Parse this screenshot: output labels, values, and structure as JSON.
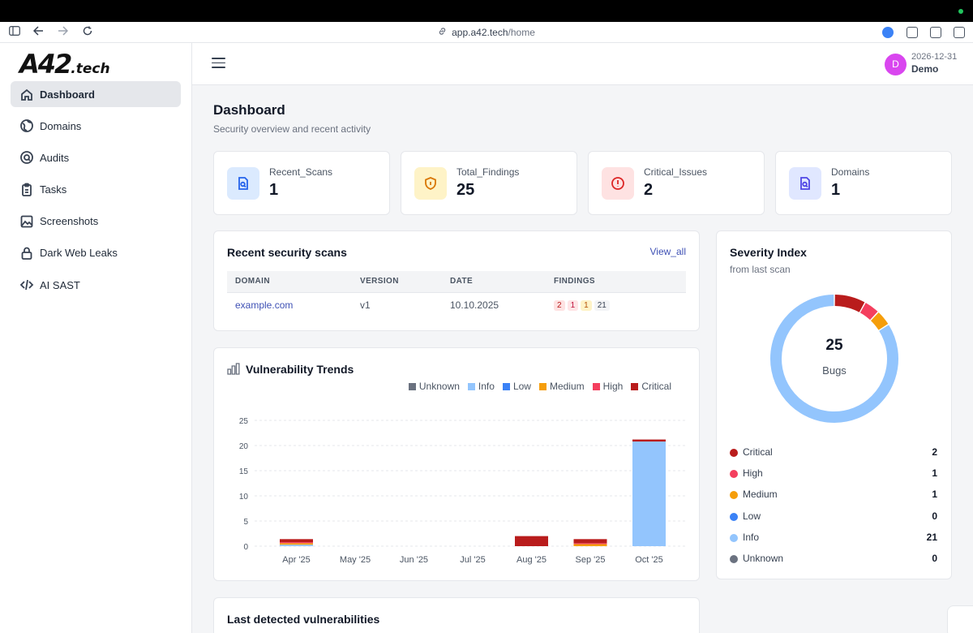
{
  "browser": {
    "url_host": "app.a42.tech",
    "url_path": "/home"
  },
  "logo": {
    "main": "A42",
    "suffix": ".tech"
  },
  "sidebar": {
    "items": [
      {
        "label": "Dashboard",
        "icon": "home-icon",
        "active": true
      },
      {
        "label": "Domains",
        "icon": "globe-icon"
      },
      {
        "label": "Audits",
        "icon": "search-circle-icon"
      },
      {
        "label": "Tasks",
        "icon": "clipboard-icon"
      },
      {
        "label": "Screenshots",
        "icon": "image-icon"
      },
      {
        "label": "Dark Web Leaks",
        "icon": "lock-icon"
      },
      {
        "label": "AI SAST",
        "icon": "code-icon"
      }
    ]
  },
  "header": {
    "avatar_initial": "D",
    "date": "2026-12-31",
    "user": "Demo"
  },
  "page": {
    "title": "Dashboard",
    "subtitle": "Security overview and recent activity"
  },
  "stats": [
    {
      "label": "Recent_Scans",
      "value": "1",
      "icon": "scan-doc-icon",
      "bg": "#dbeafe",
      "color": "#2563eb"
    },
    {
      "label": "Total_Findings",
      "value": "25",
      "icon": "shield-icon",
      "bg": "#fef3c7",
      "color": "#d97706"
    },
    {
      "label": "Critical_Issues",
      "value": "2",
      "icon": "alert-circle-icon",
      "bg": "#fee2e2",
      "color": "#dc2626"
    },
    {
      "label": "Domains",
      "value": "1",
      "icon": "domain-doc-icon",
      "bg": "#e0e7ff",
      "color": "#4f46e5"
    }
  ],
  "scans": {
    "title": "Recent security scans",
    "view_all": "View_all",
    "columns": [
      "DOMAIN",
      "VERSION",
      "DATE",
      "FINDINGS"
    ],
    "rows": [
      {
        "domain": "example.com",
        "version": "v1",
        "date": "10.10.2025",
        "findings": [
          "2",
          "1",
          "1",
          "21"
        ]
      }
    ],
    "badge_styles": [
      {
        "bg": "#fee2e2",
        "fg": "#b91c1c"
      },
      {
        "bg": "#ffe4e6",
        "fg": "#be123c"
      },
      {
        "bg": "#fef3c7",
        "fg": "#b45309"
      },
      {
        "bg": "#f3f4f6",
        "fg": "#374151"
      }
    ]
  },
  "trends": {
    "title": "Vulnerability Trends",
    "icon": "bar-chart-icon"
  },
  "chart_data": {
    "type": "bar",
    "stacked": true,
    "categories": [
      "Apr '25",
      "May '25",
      "Jun '25",
      "Jul '25",
      "Aug '25",
      "Sep '25",
      "Oct '25"
    ],
    "series": [
      {
        "name": "Unknown",
        "color": "#6b7280",
        "values": [
          0,
          0,
          0,
          0,
          0,
          0,
          0
        ]
      },
      {
        "name": "Info",
        "color": "#93c5fd",
        "values": [
          0.3,
          0,
          0,
          0,
          0,
          0,
          20.8
        ]
      },
      {
        "name": "Low",
        "color": "#3b82f6",
        "values": [
          0,
          0,
          0,
          0,
          0,
          0,
          0
        ]
      },
      {
        "name": "Medium",
        "color": "#f59e0b",
        "values": [
          0.3,
          0,
          0,
          0,
          0,
          0.4,
          0
        ]
      },
      {
        "name": "High",
        "color": "#f43f5e",
        "values": [
          0.2,
          0,
          0,
          0,
          0,
          0.2,
          0
        ]
      },
      {
        "name": "Critical",
        "color": "#b91c1c",
        "values": [
          0.6,
          0,
          0,
          0,
          2,
          0.8,
          0.4
        ]
      }
    ],
    "y_ticks": [
      0,
      5,
      10,
      15,
      20,
      25
    ],
    "ylim": [
      0,
      25
    ],
    "grid": true,
    "legend_position": "top-right"
  },
  "severity": {
    "title": "Severity Index",
    "subtitle": "from last scan",
    "total": "25",
    "total_label": "Bugs",
    "items": [
      {
        "name": "Critical",
        "value": 2,
        "color": "#b91c1c"
      },
      {
        "name": "High",
        "value": 1,
        "color": "#f43f5e"
      },
      {
        "name": "Medium",
        "value": 1,
        "color": "#f59e0b"
      },
      {
        "name": "Low",
        "value": 0,
        "color": "#3b82f6"
      },
      {
        "name": "Info",
        "value": 21,
        "color": "#93c5fd"
      },
      {
        "name": "Unknown",
        "value": 0,
        "color": "#6b7280"
      }
    ]
  },
  "last_vulns": {
    "title": "Last detected vulnerabilities"
  }
}
